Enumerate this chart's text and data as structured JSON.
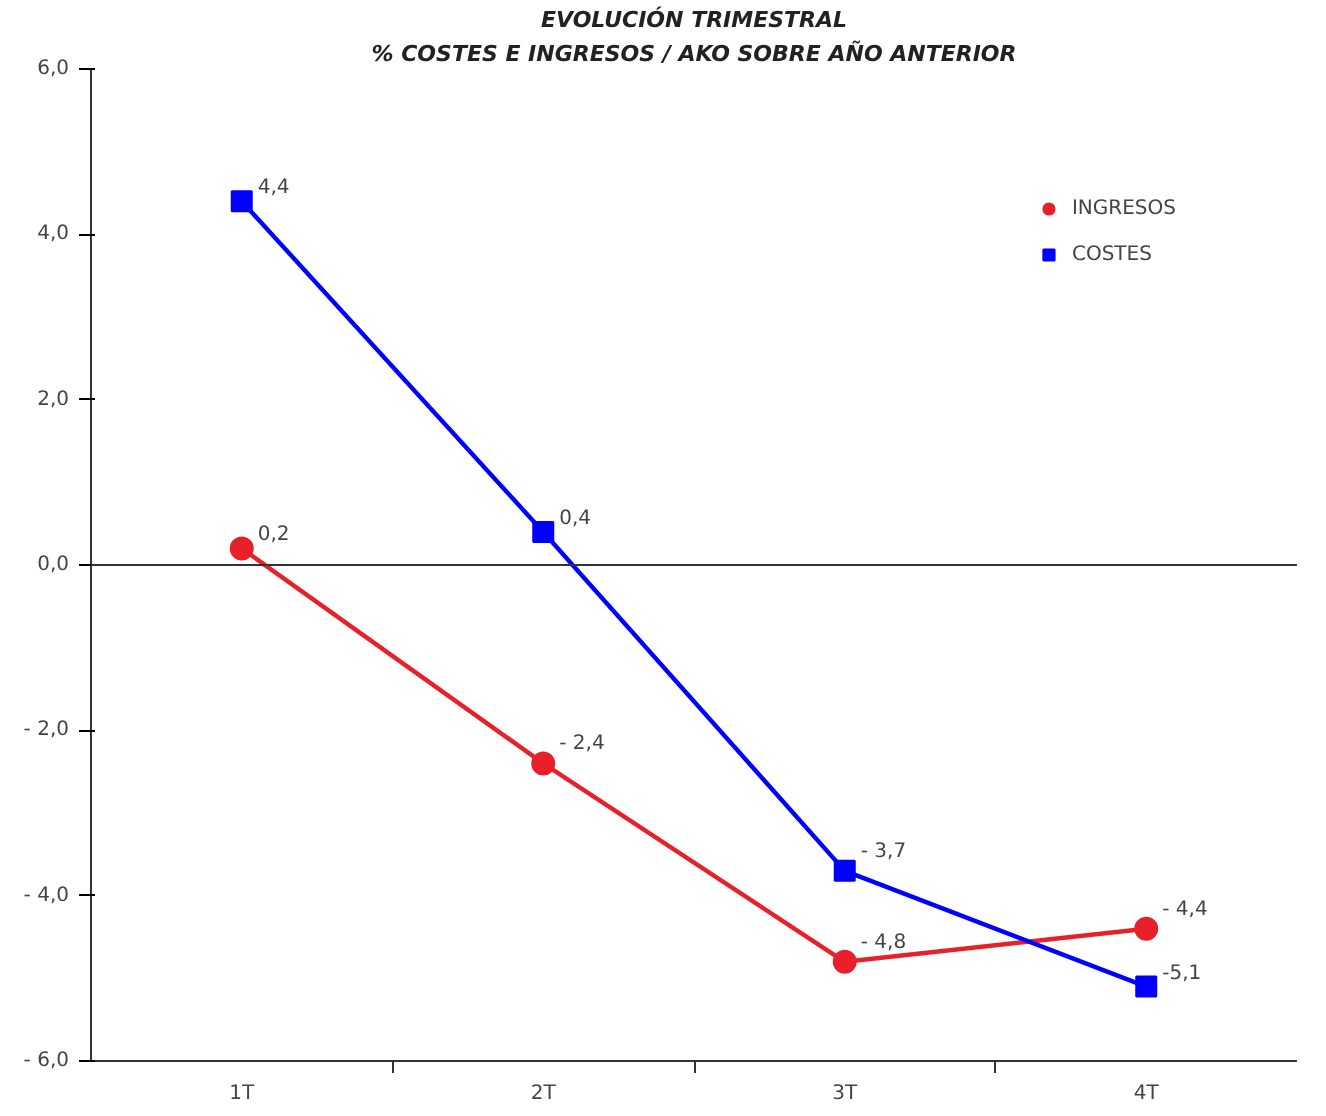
{
  "chart_data": {
    "type": "line",
    "title": "EVOLUCIÓN TRIMESTRAL",
    "subtitle": "% COSTES E INGRESOS / AKO SOBRE AÑO ANTERIOR",
    "categories": [
      "1T",
      "2T",
      "3T",
      "4T"
    ],
    "series": [
      {
        "name": "INGRESOS",
        "color": "#e8202a",
        "marker": "circle",
        "values": [
          0.2,
          -2.4,
          -4.8,
          -4.4
        ],
        "value_labels": [
          "0,2",
          "- 2,4",
          "- 4,8",
          "- 4,4"
        ]
      },
      {
        "name": "COSTES",
        "color": "#0000ff",
        "marker": "square",
        "values": [
          4.4,
          0.4,
          -3.7,
          -5.1
        ],
        "value_labels": [
          "4,4",
          "0,4",
          "- 3,7",
          "-5,1"
        ]
      }
    ],
    "ylim": [
      -6,
      6
    ],
    "yticks": [
      {
        "value": -6,
        "label": "- 6,0"
      },
      {
        "value": -4,
        "label": "- 4,0"
      },
      {
        "value": -2,
        "label": "- 2,0"
      },
      {
        "value": 0,
        "label": "0,0"
      },
      {
        "value": 2,
        "label": "2,0"
      },
      {
        "value": 4,
        "label": "4,0"
      },
      {
        "value": 6,
        "label": "6,0"
      }
    ],
    "ref_lines": [
      {
        "axis": "y",
        "value": 0,
        "color": "#333333"
      }
    ],
    "grid": false,
    "legend": "top right",
    "line_style": "solid"
  }
}
